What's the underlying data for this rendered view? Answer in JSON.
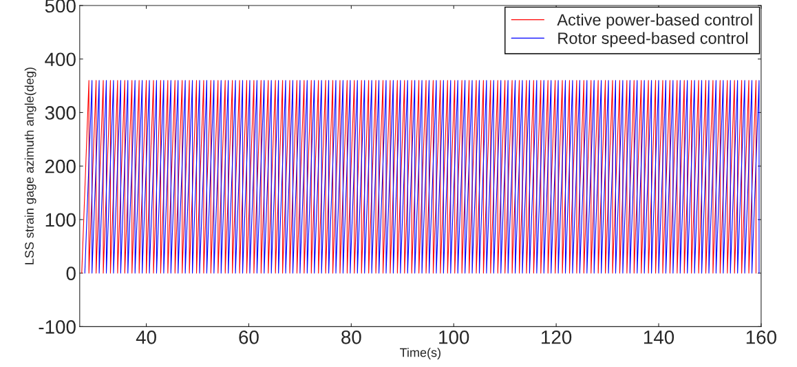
{
  "chart_data": {
    "type": "line",
    "xlabel": "Time(s)",
    "ylabel": "LSS strain gage azimuth angle(deg)",
    "xlim": [
      27,
      160
    ],
    "ylim": [
      -100,
      500
    ],
    "xticks": [
      40,
      60,
      80,
      100,
      120,
      140,
      160
    ],
    "yticks": [
      -100,
      0,
      100,
      200,
      300,
      400,
      500
    ],
    "grid": false,
    "legend": "top right",
    "line_style": "solid",
    "marker": "none",
    "series": [
      {
        "name": "Active power-based control",
        "color": "#ff0000",
        "x": [
          27.4,
          28.8,
          28.8,
          30.2,
          30.2,
          31.6,
          31.6,
          33.0,
          33.0,
          34.4,
          34.4,
          35.8,
          35.8,
          37.2,
          37.2,
          38.6,
          38.6,
          40.0,
          40.0,
          41.4,
          41.4,
          42.8,
          42.8,
          44.2,
          44.2,
          45.6,
          45.6,
          47.0,
          47.0,
          48.4,
          48.4,
          49.8,
          49.8,
          51.2,
          51.2,
          52.6,
          52.6,
          54.0,
          54.0,
          55.4,
          55.4,
          56.8,
          56.8,
          58.2,
          58.2,
          59.6,
          59.6,
          61.0,
          61.0,
          62.4,
          62.4,
          63.8,
          63.8,
          65.2,
          65.2,
          66.6,
          66.6,
          68.0,
          68.0,
          69.4,
          69.4,
          70.8,
          70.8,
          72.2,
          72.2,
          73.6,
          73.6,
          75.0,
          75.0,
          76.4,
          76.4,
          77.8,
          77.8,
          79.2,
          79.2,
          80.6,
          80.6,
          82.0,
          82.0,
          83.4,
          83.4,
          84.8,
          84.8,
          86.2,
          86.2,
          87.6,
          87.6,
          89.0,
          89.0,
          90.4,
          90.4,
          91.8,
          91.8,
          93.2,
          93.2,
          94.6,
          94.6,
          96.0,
          96.0,
          97.4,
          97.4,
          98.8,
          98.8,
          100.2,
          100.2,
          101.6,
          101.6,
          103.0,
          103.0,
          104.4,
          104.4,
          105.8,
          105.8,
          107.2,
          107.2,
          108.6,
          108.6,
          110.0,
          110.0,
          111.4,
          111.4,
          112.8,
          112.8,
          114.2,
          114.2,
          115.6,
          115.6,
          117.0,
          117.0,
          118.4,
          118.4,
          119.8,
          119.8,
          121.2,
          121.2,
          122.6,
          122.6,
          124.0,
          124.0,
          125.4,
          125.4,
          126.8,
          126.8,
          128.2,
          128.2,
          129.6,
          129.6,
          131.0,
          131.0,
          132.4,
          132.4,
          133.8,
          133.8,
          135.2,
          135.2,
          136.6,
          136.6,
          138.0,
          138.0,
          139.4,
          139.4,
          140.8,
          140.8,
          142.2,
          142.2,
          143.6,
          143.6,
          145.0,
          145.0,
          146.4,
          146.4,
          147.8,
          147.8,
          149.2,
          149.2,
          150.6,
          150.6,
          152.0,
          152.0,
          153.4,
          153.4,
          154.8,
          154.8,
          156.2,
          156.2,
          157.6,
          157.6,
          159.0,
          159.0
        ],
        "values": [
          0,
          360,
          0,
          360,
          0,
          360,
          0,
          360,
          0,
          360,
          0,
          360,
          0,
          360,
          0,
          360,
          0,
          360,
          0,
          360,
          0,
          360,
          0,
          360,
          0,
          360,
          0,
          360,
          0,
          360,
          0,
          360,
          0,
          360,
          0,
          360,
          0,
          360,
          0,
          360,
          0,
          360,
          0,
          360,
          0,
          360,
          0,
          360,
          0,
          360,
          0,
          360,
          0,
          360,
          0,
          360,
          0,
          360,
          0,
          360,
          0,
          360,
          0,
          360,
          0,
          360,
          0,
          360,
          0,
          360,
          0,
          360,
          0,
          360,
          0,
          360,
          0,
          360,
          0,
          360,
          0,
          360,
          0,
          360,
          0,
          360,
          0,
          360,
          0,
          360,
          0,
          360,
          0,
          360,
          0,
          360,
          0,
          360,
          0,
          360,
          0,
          360,
          0,
          360,
          0,
          360,
          0,
          360,
          0,
          360,
          0,
          360,
          0,
          360,
          0,
          360,
          0,
          360,
          0,
          360,
          0,
          360,
          0,
          360,
          0,
          360,
          0,
          360,
          0,
          360,
          0,
          360,
          0,
          360,
          0,
          360,
          0,
          360,
          0,
          360,
          0,
          360,
          0,
          360,
          0,
          360,
          0,
          360,
          0,
          360,
          0,
          360,
          0,
          360,
          0,
          360,
          0,
          360,
          0,
          360,
          0,
          360,
          0,
          360,
          0,
          360,
          0,
          360,
          0,
          360,
          0,
          360,
          0,
          360,
          0,
          360,
          0,
          360,
          0,
          360,
          0,
          360,
          0,
          360,
          0,
          360,
          0,
          360,
          0
        ]
      },
      {
        "name": "Rotor speed-based control",
        "color": "#0000ff",
        "x": [
          28.0,
          29.4,
          29.4,
          30.8,
          30.8,
          32.2,
          32.2,
          33.6,
          33.6,
          35.0,
          35.0,
          36.4,
          36.4,
          37.8,
          37.8,
          39.2,
          39.2,
          40.6,
          40.6,
          42.0,
          42.0,
          43.4,
          43.4,
          44.8,
          44.8,
          46.2,
          46.2,
          47.6,
          47.6,
          49.0,
          49.0,
          50.4,
          50.4,
          51.8,
          51.8,
          53.2,
          53.2,
          54.6,
          54.6,
          56.0,
          56.0,
          57.4,
          57.4,
          58.8,
          58.8,
          60.2,
          60.2,
          61.6,
          61.6,
          63.0,
          63.0,
          64.4,
          64.4,
          65.8,
          65.8,
          67.2,
          67.2,
          68.6,
          68.6,
          70.0,
          70.0,
          71.4,
          71.4,
          72.8,
          72.8,
          74.2,
          74.2,
          75.6,
          75.6,
          77.0,
          77.0,
          78.4,
          78.4,
          79.8,
          79.8,
          81.2,
          81.2,
          82.6,
          82.6,
          84.0,
          84.0,
          85.4,
          85.4,
          86.8,
          86.8,
          88.2,
          88.2,
          89.6,
          89.6,
          91.0,
          91.0,
          92.4,
          92.4,
          93.8,
          93.8,
          95.2,
          95.2,
          96.6,
          96.6,
          98.0,
          98.0,
          99.4,
          99.4,
          100.8,
          100.8,
          102.2,
          102.2,
          103.6,
          103.6,
          105.0,
          105.0,
          106.4,
          106.4,
          107.8,
          107.8,
          109.2,
          109.2,
          110.6,
          110.6,
          112.0,
          112.0,
          113.4,
          113.4,
          114.8,
          114.8,
          116.2,
          116.2,
          117.6,
          117.6,
          119.0,
          119.0,
          120.4,
          120.4,
          121.8,
          121.8,
          123.2,
          123.2,
          124.6,
          124.6,
          126.0,
          126.0,
          127.4,
          127.4,
          128.8,
          128.8,
          130.2,
          130.2,
          131.6,
          131.6,
          133.0,
          133.0,
          134.4,
          134.4,
          135.8,
          135.8,
          137.2,
          137.2,
          138.6,
          138.6,
          140.0,
          140.0,
          141.4,
          141.4,
          142.8,
          142.8,
          144.2,
          144.2,
          145.6,
          145.6,
          147.0,
          147.0,
          148.4,
          148.4,
          149.8,
          149.8,
          151.2,
          151.2,
          152.6,
          152.6,
          154.0,
          154.0,
          155.4,
          155.4,
          156.8,
          156.8,
          158.2,
          158.2,
          159.6,
          159.6
        ],
        "values": [
          0,
          360,
          0,
          360,
          0,
          360,
          0,
          360,
          0,
          360,
          0,
          360,
          0,
          360,
          0,
          360,
          0,
          360,
          0,
          360,
          0,
          360,
          0,
          360,
          0,
          360,
          0,
          360,
          0,
          360,
          0,
          360,
          0,
          360,
          0,
          360,
          0,
          360,
          0,
          360,
          0,
          360,
          0,
          360,
          0,
          360,
          0,
          360,
          0,
          360,
          0,
          360,
          0,
          360,
          0,
          360,
          0,
          360,
          0,
          360,
          0,
          360,
          0,
          360,
          0,
          360,
          0,
          360,
          0,
          360,
          0,
          360,
          0,
          360,
          0,
          360,
          0,
          360,
          0,
          360,
          0,
          360,
          0,
          360,
          0,
          360,
          0,
          360,
          0,
          360,
          0,
          360,
          0,
          360,
          0,
          360,
          0,
          360,
          0,
          360,
          0,
          360,
          0,
          360,
          0,
          360,
          0,
          360,
          0,
          360,
          0,
          360,
          0,
          360,
          0,
          360,
          0,
          360,
          0,
          360,
          0,
          360,
          0,
          360,
          0,
          360,
          0,
          360,
          0,
          360,
          0,
          360,
          0,
          360,
          0,
          360,
          0,
          360,
          0,
          360,
          0,
          360,
          0,
          360,
          0,
          360,
          0,
          360,
          0,
          360,
          0,
          360,
          0,
          360,
          0,
          360,
          0,
          360,
          0,
          360,
          0,
          360,
          0,
          360,
          0,
          360,
          0,
          360,
          0,
          360,
          0,
          360,
          0,
          360,
          0,
          360,
          0,
          360,
          0,
          360,
          0,
          360,
          0,
          360,
          0,
          360,
          0,
          360,
          0
        ]
      }
    ]
  }
}
